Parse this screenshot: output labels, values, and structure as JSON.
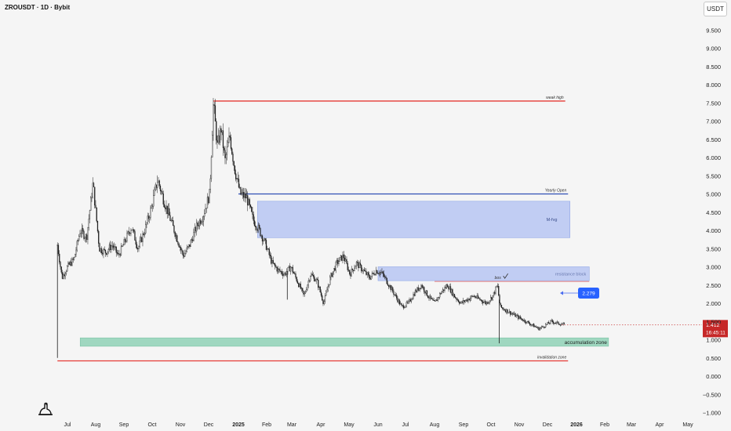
{
  "header": {
    "title": "ZROUSDT · 1D · Bybit",
    "currency": "USDT"
  },
  "colors": {
    "background": "#f5f5f5",
    "candle": "#1e1e1e",
    "red_line": "#e53935",
    "blue_line": "#2f4fb5",
    "zone_blue": "#b7c6f2",
    "zone_green": "#8fd1b6",
    "label_blue": "#2962ff",
    "price_badge": "#c62828"
  },
  "icons": {
    "logo": "tradingview-dino-icon"
  },
  "chart_data": {
    "type": "candlestick",
    "symbol": "ZROUSDT",
    "timeframe": "1D",
    "exchange": "Bybit",
    "x": [
      "Jul",
      "Aug",
      "Sep",
      "Oct",
      "Nov",
      "Dec",
      "2025",
      "Feb",
      "Mar",
      "Apr",
      "May",
      "Jun",
      "Jul",
      "Aug",
      "Sep",
      "Oct",
      "Nov",
      "Dec",
      "2026",
      "Feb",
      "Mar",
      "Apr",
      "May"
    ],
    "ylim": [
      -1.2,
      10.0
    ],
    "y_ticks": [
      "−1.000",
      "−0.500",
      "0.000",
      "0.500",
      "1.000",
      "1.500",
      "2.000",
      "2.500",
      "3.000",
      "3.500",
      "4.000",
      "4.500",
      "5.000",
      "5.500",
      "6.000",
      "6.500",
      "7.000",
      "7.500",
      "8.000",
      "8.500",
      "9.000",
      "9.500"
    ],
    "close_path": [
      [
        "2024-06-20",
        3.6
      ],
      [
        "2024-06-25",
        2.7
      ],
      [
        "2024-07-01",
        3.0
      ],
      [
        "2024-07-08",
        3.2
      ],
      [
        "2024-07-15",
        4.0
      ],
      [
        "2024-07-22",
        3.8
      ],
      [
        "2024-07-29",
        5.3
      ],
      [
        "2024-08-05",
        3.5
      ],
      [
        "2024-08-12",
        3.4
      ],
      [
        "2024-08-19",
        3.6
      ],
      [
        "2024-08-26",
        3.3
      ],
      [
        "2024-09-02",
        3.7
      ],
      [
        "2024-09-09",
        4.1
      ],
      [
        "2024-09-16",
        3.5
      ],
      [
        "2024-09-23",
        4.0
      ],
      [
        "2024-09-30",
        4.6
      ],
      [
        "2024-10-07",
        5.4
      ],
      [
        "2024-10-14",
        4.8
      ],
      [
        "2024-10-21",
        4.3
      ],
      [
        "2024-10-28",
        3.8
      ],
      [
        "2024-11-04",
        3.3
      ],
      [
        "2024-11-11",
        3.6
      ],
      [
        "2024-11-18",
        4.1
      ],
      [
        "2024-11-25",
        4.4
      ],
      [
        "2024-12-02",
        5.0
      ],
      [
        "2024-12-06",
        7.5
      ],
      [
        "2024-12-10",
        6.3
      ],
      [
        "2024-12-14",
        6.8
      ],
      [
        "2024-12-18",
        5.9
      ],
      [
        "2024-12-23",
        6.6
      ],
      [
        "2024-12-28",
        5.7
      ],
      [
        "2025-01-03",
        5.0
      ],
      [
        "2025-01-10",
        4.9
      ],
      [
        "2025-01-17",
        4.3
      ],
      [
        "2025-01-24",
        4.0
      ],
      [
        "2025-01-31",
        3.6
      ],
      [
        "2025-02-07",
        3.1
      ],
      [
        "2025-02-14",
        2.9
      ],
      [
        "2025-02-21",
        2.8
      ],
      [
        "2025-02-28",
        3.0
      ],
      [
        "2025-03-07",
        2.6
      ],
      [
        "2025-03-14",
        2.2
      ],
      [
        "2025-03-21",
        2.8
      ],
      [
        "2025-03-28",
        2.6
      ],
      [
        "2025-04-04",
        2.0
      ],
      [
        "2025-04-11",
        2.7
      ],
      [
        "2025-04-18",
        3.1
      ],
      [
        "2025-04-25",
        3.3
      ],
      [
        "2025-05-02",
        2.8
      ],
      [
        "2025-05-09",
        3.1
      ],
      [
        "2025-05-16",
        2.9
      ],
      [
        "2025-05-23",
        2.7
      ],
      [
        "2025-05-30",
        2.9
      ],
      [
        "2025-06-06",
        2.8
      ],
      [
        "2025-06-13",
        2.5
      ],
      [
        "2025-06-20",
        2.2
      ],
      [
        "2025-06-27",
        1.9
      ],
      [
        "2025-07-04",
        2.0
      ],
      [
        "2025-07-11",
        2.3
      ],
      [
        "2025-07-18",
        2.5
      ],
      [
        "2025-07-25",
        2.2
      ],
      [
        "2025-08-01",
        2.0
      ],
      [
        "2025-08-08",
        2.3
      ],
      [
        "2025-08-15",
        2.5
      ],
      [
        "2025-08-22",
        2.2
      ],
      [
        "2025-08-29",
        2.0
      ],
      [
        "2025-09-05",
        2.1
      ],
      [
        "2025-09-12",
        2.2
      ],
      [
        "2025-09-19",
        2.1
      ],
      [
        "2025-09-26",
        2.0
      ],
      [
        "2025-10-03",
        2.2
      ],
      [
        "2025-10-08",
        2.5
      ],
      [
        "2025-10-11",
        1.9
      ],
      [
        "2025-10-18",
        1.8
      ],
      [
        "2025-10-25",
        1.7
      ],
      [
        "2025-11-01",
        1.6
      ],
      [
        "2025-11-08",
        1.5
      ],
      [
        "2025-11-15",
        1.4
      ],
      [
        "2025-11-22",
        1.3
      ],
      [
        "2025-11-29",
        1.4
      ],
      [
        "2025-12-05",
        1.5
      ],
      [
        "2025-12-12",
        1.45
      ],
      [
        "2025-12-19",
        1.41
      ]
    ],
    "spikes": [
      {
        "date": "2024-06-20",
        "low": 0.5
      },
      {
        "date": "2025-02-24",
        "low": 2.1
      },
      {
        "date": "2025-10-10",
        "low": 0.9
      }
    ],
    "annotations": {
      "levels": [
        {
          "label": "weak high",
          "value": 7.55,
          "from": "2024-12-06",
          "to": "2025-12-20",
          "color": "#e53935"
        },
        {
          "label": "Yearly Open",
          "value": 5.0,
          "from": "2025-01-01",
          "to": "2025-12-23",
          "color": "#2f4fb5"
        },
        {
          "label": "invalidation zone",
          "value": 0.42,
          "from": "2024-06-20",
          "to": "2025-12-23",
          "color": "#e53935"
        }
      ],
      "zones": [
        {
          "label": "M-fvg",
          "from": "2025-01-22",
          "to": "2025-12-25",
          "top": 4.8,
          "bottom": 3.8,
          "color": "#b7c6f2"
        },
        {
          "label": "resistance block",
          "from": "2025-06-01",
          "to": "2026-01-15",
          "top": 3.0,
          "bottom": 2.62,
          "color": "#b7c6f2"
        },
        {
          "label": "accumulation zone",
          "from": "2024-07-15",
          "to": "2026-02-05",
          "top": 1.05,
          "bottom": 0.82,
          "color": "#8fd1b6"
        }
      ],
      "bos_label": "bos",
      "bos_line": {
        "value": 2.6,
        "from": "2025-08-01",
        "to": "2026-01-15"
      },
      "target_label": "2.279",
      "target_value": 2.279,
      "last_price": "1.412",
      "last_price_value": 1.412,
      "countdown": "16:45:11"
    }
  }
}
